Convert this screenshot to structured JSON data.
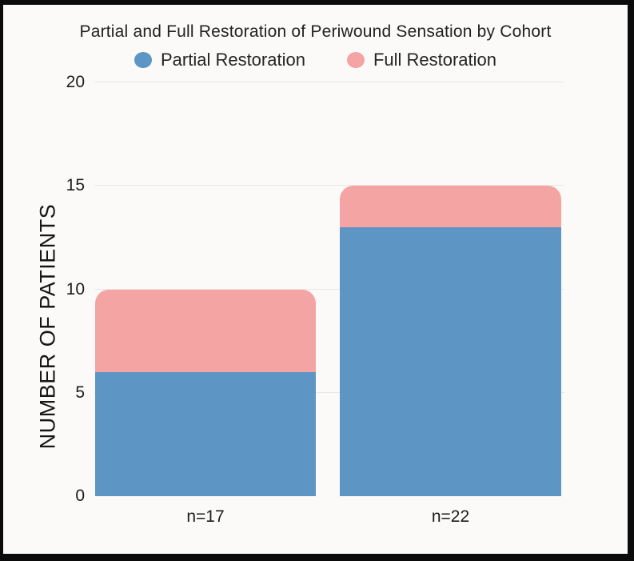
{
  "title": "Partial and Full Restoration of Periwound Sensation by Cohort",
  "legend": [
    {
      "label": "Partial Restoration",
      "color": "#5d96c5"
    },
    {
      "label": "Full Restoration",
      "color": "#f3a4a3"
    }
  ],
  "chart_data": {
    "type": "bar",
    "stacked": true,
    "title": "Partial and Full Restoration of Periwound Sensation by Cohort",
    "categories": [
      "n=17",
      "n=22"
    ],
    "series": [
      {
        "name": "Partial Restoration",
        "color": "#5d96c5",
        "values": [
          6,
          13
        ]
      },
      {
        "name": "Full Restoration",
        "color": "#f3a4a3",
        "values": [
          4,
          2
        ]
      }
    ],
    "totals": [
      10,
      15
    ],
    "xlabel": "",
    "ylabel": "NUMBER OF PATIENTS",
    "ylim": [
      0,
      20
    ],
    "yticks": [
      0,
      5,
      10,
      15,
      20
    ],
    "grid": true,
    "gridline_color": "#e8e7e5",
    "legend_position": "top",
    "background_color": "#fbfaf9",
    "frame_border_color": "#0b0b0b"
  }
}
